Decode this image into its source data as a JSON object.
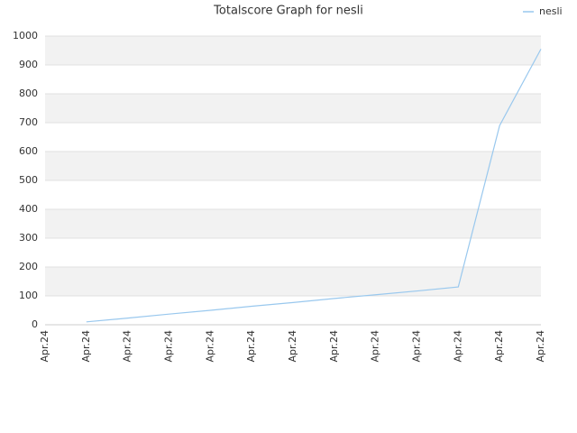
{
  "chart_data": {
    "type": "line",
    "title": "Totalscore Graph for nesli",
    "categories": [
      "Apr.24",
      "Apr.24",
      "Apr.24",
      "Apr.24",
      "Apr.24",
      "Apr.24",
      "Apr.24",
      "Apr.24",
      "Apr.24",
      "Apr.24",
      "Apr.24",
      "Apr.24",
      "Apr.24"
    ],
    "series": [
      {
        "name": "nesli",
        "color": "#99c8ee",
        "values": [
          null,
          10,
          23,
          37,
          50,
          64,
          77,
          91,
          104,
          117,
          131,
          690,
          955
        ]
      }
    ],
    "ylim": [
      0,
      1000
    ],
    "yticks": [
      0,
      100,
      200,
      300,
      400,
      500,
      600,
      700,
      800,
      900,
      1000
    ],
    "grid": true,
    "legend": "top-right"
  }
}
